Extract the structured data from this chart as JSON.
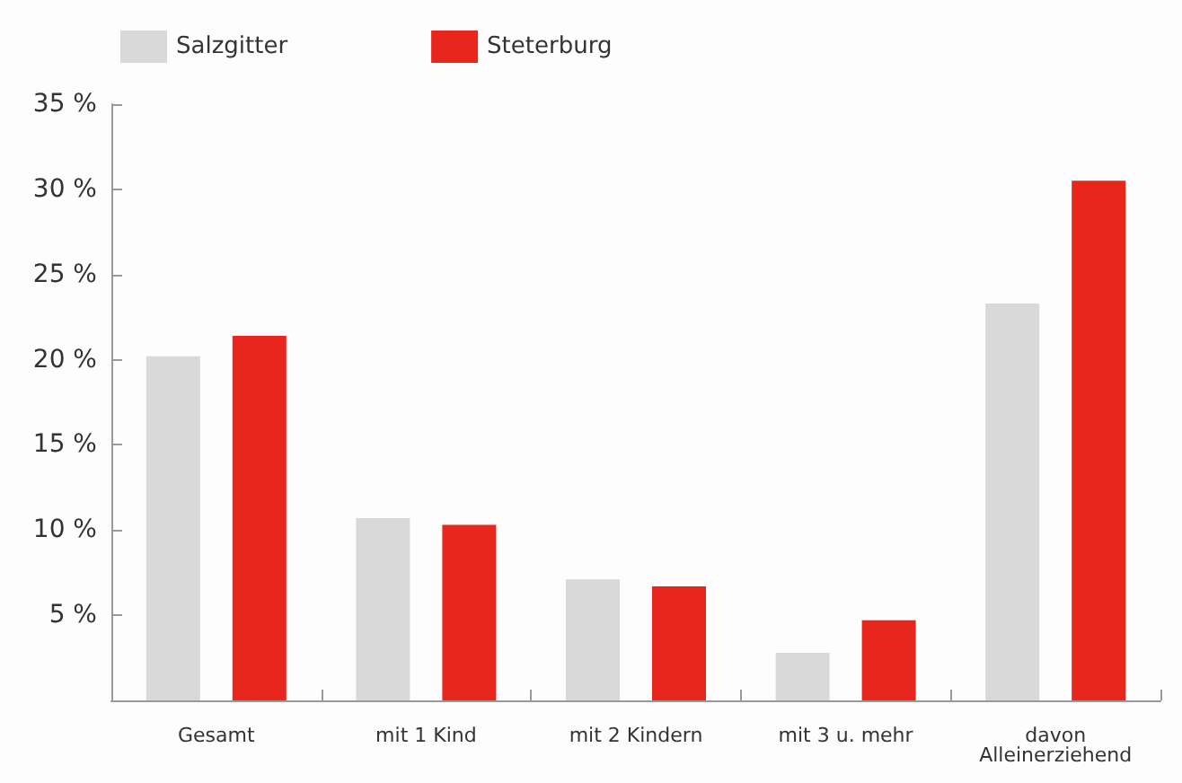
{
  "chart_data": {
    "type": "bar",
    "categories": [
      "Gesamt",
      "mit 1 Kind",
      "mit 2 Kindern",
      "mit 3 u. mehr",
      "davon\nAlleinerziehend"
    ],
    "series": [
      {
        "name": "Salzgitter",
        "color": "#d9d9d9",
        "values": [
          20.2,
          10.7,
          7.1,
          2.8,
          23.3
        ]
      },
      {
        "name": "Steterburg",
        "color": "#e8261d",
        "values": [
          21.4,
          10.3,
          6.7,
          4.7,
          30.5
        ]
      }
    ],
    "ylim": [
      0,
      35
    ],
    "yticks": [
      {
        "value": 0,
        "label": null
      },
      {
        "value": 5,
        "label": "5 %"
      },
      {
        "value": 10,
        "label": "10 %"
      },
      {
        "value": 15,
        "label": "15 %"
      },
      {
        "value": 20,
        "label": "20 %"
      },
      {
        "value": 25,
        "label": "25 %"
      },
      {
        "value": 30,
        "label": "30 %"
      },
      {
        "value": 35,
        "label": "35 %"
      }
    ],
    "grid": false,
    "legend": "top left"
  }
}
